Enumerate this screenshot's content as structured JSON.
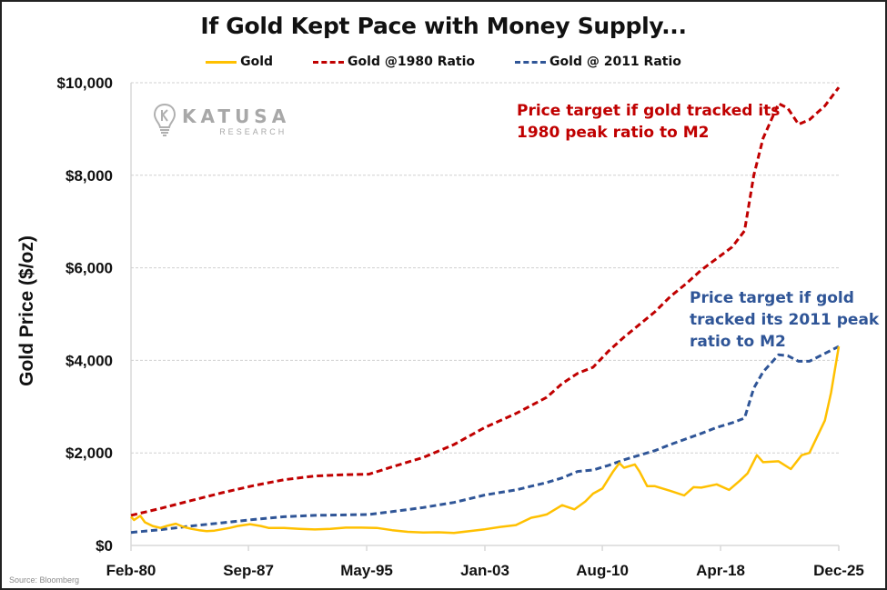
{
  "source": "Source: Bloomberg",
  "logo": {
    "name": "KATUSA",
    "sub": "RESEARCH"
  },
  "annotations": {
    "red": [
      "Price target if gold tracked its",
      "1980 peak ratio to M2"
    ],
    "blue": [
      "Price target if gold",
      "tracked its 2011 peak",
      "ratio to M2"
    ]
  },
  "colors": {
    "gold": "#FFC000",
    "red": "#C00000",
    "blue": "#2F5597",
    "grid": "#d0d0d0"
  },
  "chart_data": {
    "type": "line",
    "title": "If Gold Kept Pace with Money Supply...",
    "xlabel": "",
    "ylabel": "Gold Price ($/oz)",
    "ylim": [
      0,
      10000
    ],
    "xlim": [
      1980.1,
      2025.9
    ],
    "y_ticks": [
      0,
      2000,
      4000,
      6000,
      8000,
      10000
    ],
    "y_tick_labels": [
      "$0",
      "$2,000",
      "$4,000",
      "$6,000",
      "$8,000",
      "$10,000"
    ],
    "x_ticks": [
      1980.1,
      1987.7,
      1995.35,
      2003.0,
      2010.6,
      2018.25,
      2025.9
    ],
    "x_tick_labels": [
      "Feb-80",
      "Sep-87",
      "May-95",
      "Jan-03",
      "Aug-10",
      "Apr-18",
      "Dec-25"
    ],
    "grid": "horizontal dashed",
    "legend": "top-center",
    "series": [
      {
        "name": "Gold",
        "style": "solid",
        "color": "#FFC000",
        "x": [
          1980.1,
          1980.3,
          1980.7,
          1981.0,
          1981.5,
          1982.0,
          1982.5,
          1983.0,
          1983.5,
          1984.0,
          1984.5,
          1985.0,
          1985.5,
          1986.0,
          1986.5,
          1987.0,
          1987.8,
          1988.5,
          1989.0,
          1990.0,
          1991.0,
          1992.0,
          1993.0,
          1994.0,
          1995.0,
          1996.0,
          1997.0,
          1998.0,
          1999.0,
          2000.0,
          2001.0,
          2002.0,
          2003.0,
          2004.0,
          2005.0,
          2006.0,
          2006.5,
          2007.0,
          2008.0,
          2008.8,
          2009.5,
          2010.0,
          2010.6,
          2011.3,
          2011.7,
          2012.0,
          2012.7,
          2013.0,
          2013.5,
          2014.0,
          2015.0,
          2015.9,
          2016.5,
          2017.0,
          2018.0,
          2018.8,
          2019.5,
          2020.0,
          2020.6,
          2021.0,
          2022.0,
          2022.8,
          2023.5,
          2024.0,
          2024.5,
          2025.0,
          2025.4,
          2025.9
        ],
        "y": [
          620,
          550,
          640,
          500,
          420,
          380,
          430,
          470,
          400,
          360,
          330,
          310,
          320,
          350,
          380,
          420,
          460,
          420,
          380,
          380,
          360,
          345,
          360,
          385,
          385,
          380,
          330,
          295,
          280,
          285,
          270,
          310,
          350,
          400,
          440,
          600,
          630,
          670,
          870,
          780,
          950,
          1120,
          1230,
          1600,
          1780,
          1680,
          1750,
          1600,
          1280,
          1280,
          1180,
          1080,
          1260,
          1250,
          1320,
          1200,
          1400,
          1560,
          1950,
          1800,
          1820,
          1650,
          1950,
          2000,
          2350,
          2700,
          3300,
          4300
        ]
      },
      {
        "name": "Gold @1980 Ratio",
        "style": "dashed",
        "color": "#C00000",
        "x": [
          1980.1,
          1982.0,
          1984.0,
          1986.0,
          1988.0,
          1990.0,
          1992.0,
          1994.0,
          1995.5,
          1997.0,
          1999.0,
          2001.0,
          2003.0,
          2005.0,
          2007.0,
          2008.0,
          2009.0,
          2010.0,
          2011.0,
          2012.0,
          2014.0,
          2015.0,
          2016.0,
          2017.0,
          2018.0,
          2019.0,
          2019.8,
          2020.4,
          2021.0,
          2022.0,
          2022.6,
          2023.3,
          2024.0,
          2025.0,
          2025.9
        ],
        "y": [
          650,
          800,
          970,
          1140,
          1290,
          1420,
          1500,
          1530,
          1540,
          1700,
          1900,
          2180,
          2550,
          2850,
          3200,
          3500,
          3720,
          3850,
          4200,
          4500,
          5050,
          5380,
          5650,
          5950,
          6200,
          6450,
          6800,
          8000,
          8800,
          9550,
          9450,
          9100,
          9200,
          9500,
          9900
        ]
      },
      {
        "name": "Gold @ 2011 Ratio",
        "style": "dashed",
        "color": "#2F5597",
        "x": [
          1980.1,
          1982.0,
          1984.0,
          1986.0,
          1988.0,
          1990.0,
          1992.0,
          1994.0,
          1995.5,
          1997.0,
          1999.0,
          2001.0,
          2003.0,
          2005.0,
          2007.0,
          2008.0,
          2009.0,
          2010.0,
          2011.0,
          2012.0,
          2014.0,
          2015.0,
          2016.0,
          2017.0,
          2018.0,
          2019.0,
          2019.8,
          2020.4,
          2021.0,
          2022.0,
          2022.6,
          2023.3,
          2024.0,
          2025.0,
          2025.9
        ],
        "y": [
          280,
          340,
          420,
          490,
          560,
          620,
          650,
          660,
          670,
          730,
          820,
          930,
          1090,
          1200,
          1360,
          1460,
          1600,
          1630,
          1730,
          1850,
          2050,
          2180,
          2300,
          2420,
          2550,
          2650,
          2750,
          3400,
          3750,
          4120,
          4100,
          3980,
          3980,
          4150,
          4300
        ]
      }
    ]
  }
}
